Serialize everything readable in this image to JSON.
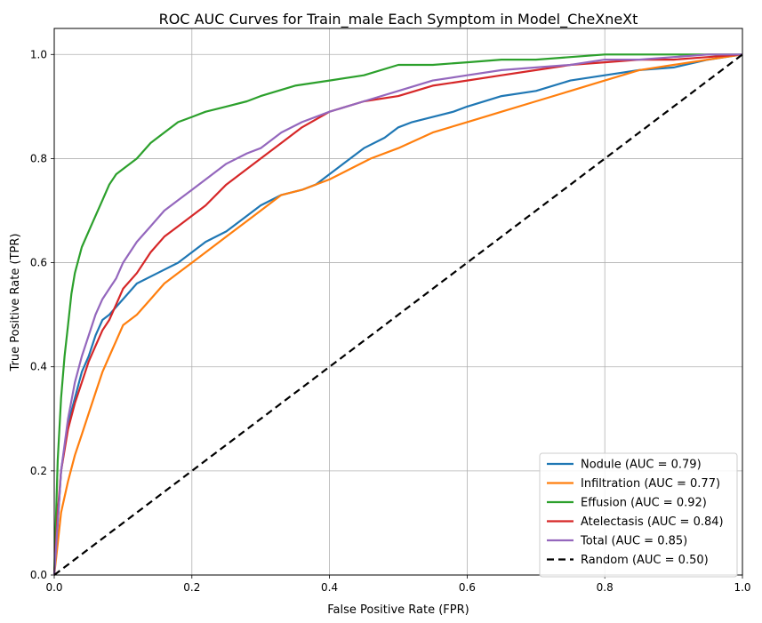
{
  "chart_data": {
    "type": "line",
    "title": "ROC AUC Curves for Train_male Each Symptom in Model_CheXneXt",
    "xlabel": "False Positive Rate (FPR)",
    "ylabel": "True Positive Rate (TPR)",
    "xlim": [
      0.0,
      1.0
    ],
    "ylim": [
      0.0,
      1.05
    ],
    "xticks": [
      "0.0",
      "0.2",
      "0.4",
      "0.6",
      "0.8",
      "1.0"
    ],
    "yticks": [
      "0.0",
      "0.2",
      "0.4",
      "0.6",
      "0.8",
      "1.0"
    ],
    "grid": true,
    "legend_position": "lower-right",
    "series": [
      {
        "name": "Nodule (AUC = 0.79)",
        "color": "#1f77b4",
        "x": [
          0,
          0.005,
          0.01,
          0.02,
          0.03,
          0.04,
          0.05,
          0.06,
          0.07,
          0.08,
          0.1,
          0.12,
          0.15,
          0.18,
          0.2,
          0.22,
          0.25,
          0.28,
          0.3,
          0.33,
          0.36,
          0.38,
          0.4,
          0.42,
          0.45,
          0.48,
          0.5,
          0.52,
          0.55,
          0.58,
          0.6,
          0.65,
          0.7,
          0.75,
          0.8,
          0.85,
          0.9,
          0.95,
          1.0
        ],
        "y": [
          0,
          0.1,
          0.2,
          0.29,
          0.34,
          0.39,
          0.42,
          0.46,
          0.49,
          0.5,
          0.53,
          0.56,
          0.58,
          0.6,
          0.62,
          0.64,
          0.66,
          0.69,
          0.71,
          0.73,
          0.74,
          0.75,
          0.77,
          0.79,
          0.82,
          0.84,
          0.86,
          0.87,
          0.88,
          0.89,
          0.9,
          0.92,
          0.93,
          0.95,
          0.96,
          0.97,
          0.975,
          0.99,
          1.0
        ]
      },
      {
        "name": "Infiltration (AUC = 0.77)",
        "color": "#ff7f0e",
        "x": [
          0,
          0.005,
          0.01,
          0.02,
          0.03,
          0.04,
          0.05,
          0.06,
          0.07,
          0.08,
          0.09,
          0.1,
          0.12,
          0.14,
          0.16,
          0.18,
          0.2,
          0.22,
          0.25,
          0.28,
          0.3,
          0.33,
          0.36,
          0.4,
          0.43,
          0.46,
          0.5,
          0.55,
          0.6,
          0.65,
          0.7,
          0.75,
          0.8,
          0.85,
          0.9,
          0.95,
          1.0
        ],
        "y": [
          0,
          0.06,
          0.12,
          0.18,
          0.23,
          0.27,
          0.31,
          0.35,
          0.39,
          0.42,
          0.45,
          0.48,
          0.5,
          0.53,
          0.56,
          0.58,
          0.6,
          0.62,
          0.65,
          0.68,
          0.7,
          0.73,
          0.74,
          0.76,
          0.78,
          0.8,
          0.82,
          0.85,
          0.87,
          0.89,
          0.91,
          0.93,
          0.95,
          0.97,
          0.98,
          0.99,
          1.0
        ]
      },
      {
        "name": "Effusion (AUC = 0.92)",
        "color": "#2ca02c",
        "x": [
          0,
          0.005,
          0.01,
          0.015,
          0.02,
          0.025,
          0.03,
          0.04,
          0.05,
          0.06,
          0.07,
          0.08,
          0.09,
          0.1,
          0.12,
          0.14,
          0.16,
          0.18,
          0.2,
          0.22,
          0.25,
          0.28,
          0.3,
          0.35,
          0.4,
          0.45,
          0.5,
          0.55,
          0.6,
          0.65,
          0.7,
          0.75,
          0.8,
          0.85,
          0.9,
          0.95,
          1.0
        ],
        "y": [
          0,
          0.22,
          0.34,
          0.42,
          0.48,
          0.54,
          0.58,
          0.63,
          0.66,
          0.69,
          0.72,
          0.75,
          0.77,
          0.78,
          0.8,
          0.83,
          0.85,
          0.87,
          0.88,
          0.89,
          0.9,
          0.91,
          0.92,
          0.94,
          0.95,
          0.96,
          0.98,
          0.98,
          0.985,
          0.99,
          0.99,
          0.995,
          1.0,
          1.0,
          1.0,
          1.0,
          1.0
        ]
      },
      {
        "name": "Atelectasis (AUC = 0.84)",
        "color": "#d62728",
        "x": [
          0,
          0.005,
          0.01,
          0.02,
          0.03,
          0.04,
          0.05,
          0.06,
          0.07,
          0.08,
          0.09,
          0.1,
          0.12,
          0.14,
          0.16,
          0.18,
          0.2,
          0.22,
          0.25,
          0.28,
          0.3,
          0.33,
          0.36,
          0.4,
          0.45,
          0.5,
          0.55,
          0.6,
          0.65,
          0.7,
          0.75,
          0.8,
          0.85,
          0.9,
          0.95,
          1.0
        ],
        "y": [
          0,
          0.12,
          0.2,
          0.28,
          0.33,
          0.37,
          0.41,
          0.44,
          0.47,
          0.49,
          0.52,
          0.55,
          0.58,
          0.62,
          0.65,
          0.67,
          0.69,
          0.71,
          0.75,
          0.78,
          0.8,
          0.83,
          0.86,
          0.89,
          0.91,
          0.92,
          0.94,
          0.95,
          0.96,
          0.97,
          0.98,
          0.985,
          0.99,
          0.99,
          0.995,
          1.0
        ]
      },
      {
        "name": "Total (AUC = 0.85)",
        "color": "#9467bd",
        "x": [
          0,
          0.005,
          0.01,
          0.02,
          0.03,
          0.04,
          0.05,
          0.06,
          0.07,
          0.08,
          0.09,
          0.1,
          0.12,
          0.14,
          0.16,
          0.18,
          0.2,
          0.22,
          0.25,
          0.28,
          0.3,
          0.33,
          0.36,
          0.4,
          0.45,
          0.5,
          0.55,
          0.6,
          0.65,
          0.7,
          0.75,
          0.8,
          0.85,
          0.9,
          0.95,
          1.0
        ],
        "y": [
          0,
          0.1,
          0.2,
          0.3,
          0.37,
          0.42,
          0.46,
          0.5,
          0.53,
          0.55,
          0.57,
          0.6,
          0.64,
          0.67,
          0.7,
          0.72,
          0.74,
          0.76,
          0.79,
          0.81,
          0.82,
          0.85,
          0.87,
          0.89,
          0.91,
          0.93,
          0.95,
          0.96,
          0.97,
          0.975,
          0.98,
          0.99,
          0.99,
          0.995,
          1.0,
          1.0
        ]
      },
      {
        "name": "Random (AUC = 0.50)",
        "color": "#000000",
        "dashed": true,
        "x": [
          0,
          1
        ],
        "y": [
          0,
          1
        ]
      }
    ]
  }
}
